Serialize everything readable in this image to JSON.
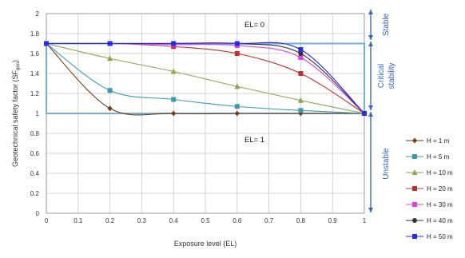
{
  "chart_data": {
    "type": "line",
    "xlabel": "Exposure level (EL)",
    "ylabel": "Geotechnical safety factor (SF",
    "ylabel_sub": "geo",
    "ylabel_close": ")",
    "xlim": [
      0,
      1
    ],
    "ylim": [
      0,
      2
    ],
    "x_ticks": [
      "0",
      "0.1",
      "0.2",
      "0.3",
      "0.4",
      "0.5",
      "0.6",
      "0.7",
      "0.8",
      "0.9",
      "1"
    ],
    "y_ticks": [
      "0",
      "0.2",
      "0.4",
      "0.6",
      "0.8",
      "1",
      "1.2",
      "1.4",
      "1.6",
      "1.8",
      "2"
    ],
    "grid": true,
    "legend_position": "right",
    "annotations": {
      "el0": "EL= 0",
      "el1": "EL= 1"
    },
    "zones": {
      "stable": "Stable",
      "critical_line1": "Critical",
      "critical_line2": "stability",
      "unstable": "Unstable"
    },
    "critical_band": [
      1.0,
      1.7
    ],
    "x": [
      0,
      0.2,
      0.4,
      0.6,
      0.8,
      1.0
    ],
    "series": [
      {
        "name": "H = 1 m",
        "color": "#7a3b10",
        "marker": "diamond",
        "values": [
          1.7,
          1.05,
          1.0,
          1.0,
          1.0,
          1.0
        ]
      },
      {
        "name": "H = 5 m",
        "color": "#3b9ab2",
        "marker": "square",
        "values": [
          1.7,
          1.23,
          1.14,
          1.07,
          1.03,
          1.0
        ]
      },
      {
        "name": "H = 10 m",
        "color": "#8ea64a",
        "marker": "triangle",
        "values": [
          1.7,
          1.55,
          1.42,
          1.27,
          1.13,
          1.0
        ]
      },
      {
        "name": "H = 20 m",
        "color": "#c0302c",
        "marker": "square",
        "values": [
          1.7,
          1.7,
          1.67,
          1.6,
          1.4,
          1.0
        ]
      },
      {
        "name": "H = 30 m",
        "color": "#e040e0",
        "marker": "square",
        "values": [
          1.7,
          1.7,
          1.69,
          1.68,
          1.56,
          1.0
        ]
      },
      {
        "name": "H = 40 m",
        "color": "#333333",
        "marker": "circle",
        "values": [
          1.7,
          1.7,
          1.7,
          1.7,
          1.6,
          1.0
        ]
      },
      {
        "name": "H = 50 m",
        "color": "#2a2ae8",
        "marker": "square",
        "values": [
          1.7,
          1.7,
          1.7,
          1.7,
          1.64,
          1.0
        ]
      }
    ]
  }
}
